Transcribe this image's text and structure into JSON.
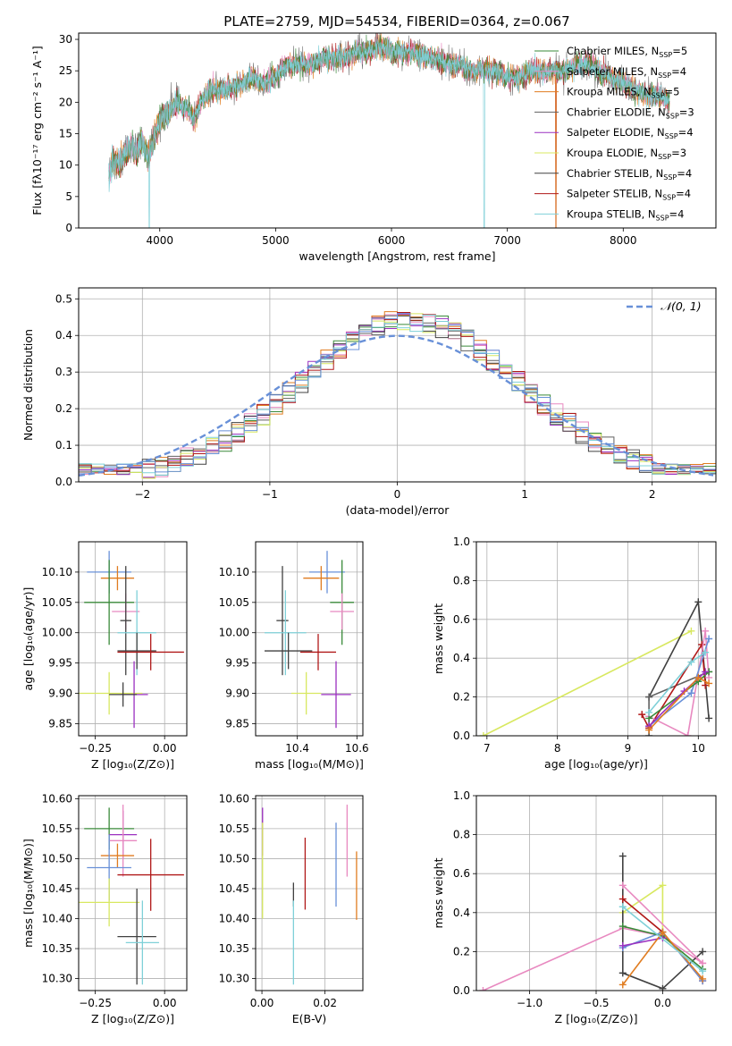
{
  "figure_title": "PLATE=2759, MJD=54534, FIBERID=0364, z=0.067",
  "colors": {
    "chabrier_miles": "#3a8a3a",
    "salpeter_miles": "#e889c0",
    "kroupa_miles": "#e07c20",
    "chabrier_elodie": "#606060",
    "salpeter_elodie": "#9b30c0",
    "kroupa_elodie": "#d8e860",
    "chabrier_stelib": "#404040",
    "salpeter_stelib": "#b01818",
    "kroupa_stelib": "#7fd0d8",
    "blue": "#6890d8",
    "normal_curve": "#6890d8"
  },
  "legend_spectrum": [
    {
      "prefix": "Chabrier MILES, N",
      "sub": "SSP",
      "suffix": "=5",
      "color": "#3a8a3a"
    },
    {
      "prefix": "Salpeter MILES, N",
      "sub": "SSP",
      "suffix": "=4",
      "color": "#e889c0"
    },
    {
      "prefix": "Kroupa MILES, N",
      "sub": "SSP",
      "suffix": "=5",
      "color": "#e07c20"
    },
    {
      "prefix": "Chabrier ELODIE, N",
      "sub": "SSP",
      "suffix": "=3",
      "color": "#606060"
    },
    {
      "prefix": "Salpeter ELODIE, N",
      "sub": "SSP",
      "suffix": "=4",
      "color": "#9b30c0"
    },
    {
      "prefix": "Kroupa ELODIE, N",
      "sub": "SSP",
      "suffix": "=3",
      "color": "#d8e860"
    },
    {
      "prefix": "Chabrier STELIB, N",
      "sub": "SSP",
      "suffix": "=4",
      "color": "#404040"
    },
    {
      "prefix": "Salpeter STELIB, N",
      "sub": "SSP",
      "suffix": "=4",
      "color": "#b01818"
    },
    {
      "prefix": "Kroupa STELIB, N",
      "sub": "SSP",
      "suffix": "=4",
      "color": "#7fd0d8"
    }
  ],
  "chart_data": [
    {
      "type": "line",
      "id": "spectrum",
      "xlabel": "wavelength [Angstrom, rest frame]",
      "ylabel": "Flux [fλ10⁻¹⁷ erg cm⁻² s⁻¹ A⁻¹]",
      "xlim": [
        3300,
        8800
      ],
      "ylim": [
        0,
        31
      ],
      "xticks": [
        4000,
        5000,
        6000,
        7000,
        8000
      ],
      "yticks": [
        0,
        5,
        10,
        15,
        20,
        25,
        30
      ],
      "x": [
        3560,
        3600,
        3650,
        3700,
        3750,
        3800,
        3850,
        3900,
        3950,
        4000,
        4050,
        4100,
        4150,
        4200,
        4250,
        4300,
        4350,
        4400,
        4450,
        4500,
        4600,
        4700,
        4800,
        4900,
        5000,
        5100,
        5200,
        5300,
        5400,
        5500,
        5600,
        5700,
        5800,
        5900,
        6000,
        6100,
        6200,
        6300,
        6400,
        6500,
        6600,
        6700,
        6800,
        6900,
        7000,
        7100,
        7200,
        7300,
        7400,
        7500,
        7600,
        7700,
        7800,
        7900,
        8000,
        8100,
        8200,
        8300,
        8400
      ],
      "y": [
        8,
        11,
        10,
        12,
        13,
        12,
        14,
        11,
        14,
        17,
        18,
        19,
        20,
        19,
        19,
        17,
        20,
        21,
        22,
        22,
        22,
        23,
        24,
        23,
        24,
        26,
        26,
        26,
        27,
        27,
        27,
        28,
        28,
        29,
        28,
        28,
        28,
        27,
        27,
        26,
        26,
        25,
        25,
        25,
        24,
        24,
        25,
        25,
        25,
        25,
        26,
        26,
        25,
        24,
        23,
        22,
        21,
        21,
        20
      ],
      "dips": [
        {
          "x": 3910,
          "y": 0
        },
        {
          "x": 6800,
          "y": 0
        },
        {
          "x": 7420,
          "y": 0
        }
      ]
    },
    {
      "type": "histogram",
      "id": "residuals",
      "xlabel": "(data-model)/error",
      "ylabel": "Normed distribution",
      "xlim": [
        -2.5,
        2.5
      ],
      "ylim": [
        0,
        0.53
      ],
      "xticks": [
        -2,
        -1,
        0,
        1,
        2
      ],
      "yticks": [
        0.0,
        0.1,
        0.2,
        0.3,
        0.4,
        0.5
      ],
      "legend_label": "𝒩(0, 1)",
      "bin_width": 0.1,
      "bins_start": -2.5
    },
    {
      "type": "scatter",
      "id": "age_vs_Z",
      "xlabel": "Z [log₁₀(Z/Z⊙)]",
      "ylabel": "age  [log₁₀(age/yr)]",
      "xlim": [
        -0.31,
        0.08
      ],
      "ylim": [
        9.83,
        10.15
      ],
      "xticks": [
        -0.25,
        0.0
      ],
      "xticklabels": [
        "−0.25",
        "0.00"
      ],
      "yticks": [
        9.85,
        9.9,
        9.95,
        10.0,
        10.05,
        10.1
      ],
      "points": [
        {
          "x": -0.2,
          "y": 10.1,
          "ex": 0.08,
          "ey": 0.035,
          "c": "#6890d8"
        },
        {
          "x": -0.17,
          "y": 10.09,
          "ex": 0.06,
          "ey": 0.02,
          "c": "#e07c20"
        },
        {
          "x": -0.2,
          "y": 10.05,
          "ex": 0.09,
          "ey": 0.07,
          "c": "#3a8a3a"
        },
        {
          "x": -0.14,
          "y": 10.035,
          "ex": 0.05,
          "ey": 0.03,
          "c": "#e889c0"
        },
        {
          "x": -0.14,
          "y": 10.02,
          "ex": 0.02,
          "ey": 0.09,
          "c": "#404040"
        },
        {
          "x": -0.1,
          "y": 10.0,
          "ex": 0.07,
          "ey": 0.07,
          "c": "#7fd0d8"
        },
        {
          "x": -0.1,
          "y": 9.97,
          "ex": 0.07,
          "ey": 0.03,
          "c": "#404040"
        },
        {
          "x": -0.05,
          "y": 9.968,
          "ex": 0.12,
          "ey": 0.03,
          "c": "#b01818"
        },
        {
          "x": -0.2,
          "y": 9.9,
          "ex": 0.12,
          "ey": 0.035,
          "c": "#d8e860"
        },
        {
          "x": -0.11,
          "y": 9.898,
          "ex": 0.05,
          "ey": 0.055,
          "c": "#9b30c0"
        },
        {
          "x": -0.15,
          "y": 9.898,
          "ex": 0.05,
          "ey": 0.02,
          "c": "#404040"
        }
      ]
    },
    {
      "type": "scatter",
      "id": "age_vs_mass",
      "xlabel": "mass [log₁₀(M/M⊙)]",
      "ylabel": "",
      "xlim": [
        10.26,
        10.62
      ],
      "ylim": [
        9.83,
        10.15
      ],
      "xticks": [
        10.4,
        10.6
      ],
      "xticklabels": [
        "10.4",
        "10.6"
      ],
      "yticks": [
        9.85,
        9.9,
        9.95,
        10.0,
        10.05,
        10.1
      ],
      "points": [
        {
          "x": 10.5,
          "y": 10.1,
          "ex": 0.06,
          "ey": 0.035,
          "c": "#6890d8"
        },
        {
          "x": 10.48,
          "y": 10.09,
          "ex": 0.06,
          "ey": 0.02,
          "c": "#e07c20"
        },
        {
          "x": 10.55,
          "y": 10.05,
          "ex": 0.04,
          "ey": 0.07,
          "c": "#3a8a3a"
        },
        {
          "x": 10.55,
          "y": 10.035,
          "ex": 0.04,
          "ey": 0.03,
          "c": "#e889c0"
        },
        {
          "x": 10.35,
          "y": 10.02,
          "ex": 0.02,
          "ey": 0.09,
          "c": "#404040"
        },
        {
          "x": 10.36,
          "y": 10.0,
          "ex": 0.07,
          "ey": 0.07,
          "c": "#7fd0d8"
        },
        {
          "x": 10.37,
          "y": 9.97,
          "ex": 0.08,
          "ey": 0.03,
          "c": "#404040"
        },
        {
          "x": 10.47,
          "y": 9.968,
          "ex": 0.06,
          "ey": 0.03,
          "c": "#b01818"
        },
        {
          "x": 10.43,
          "y": 9.9,
          "ex": 0.05,
          "ey": 0.035,
          "c": "#d8e860"
        },
        {
          "x": 10.53,
          "y": 9.898,
          "ex": 0.05,
          "ey": 0.055,
          "c": "#9b30c0"
        }
      ]
    },
    {
      "type": "line",
      "id": "mass_weight_vs_age",
      "xlabel": "age  [log₁₀(age/yr)]",
      "ylabel": "mass weight",
      "xlim": [
        6.85,
        10.25
      ],
      "ylim": [
        0,
        1.0
      ],
      "xticks": [
        7,
        8,
        9,
        10
      ],
      "yticks": [
        0.0,
        0.2,
        0.4,
        0.6,
        0.8,
        1.0
      ],
      "series": [
        {
          "c": "#d8e860",
          "x": [
            6.95,
            9.9
          ],
          "y": [
            0.0,
            0.54
          ]
        },
        {
          "c": "#404040",
          "x": [
            9.3,
            10.0,
            10.15
          ],
          "y": [
            0.2,
            0.69,
            0.09
          ]
        },
        {
          "c": "#606060",
          "x": [
            9.3,
            9.3,
            10.15
          ],
          "y": [
            0.0,
            0.2,
            0.33
          ]
        },
        {
          "c": "#b01818",
          "x": [
            9.2,
            9.3,
            10.05,
            10.1
          ],
          "y": [
            0.11,
            0.04,
            0.47,
            0.26
          ]
        },
        {
          "c": "#e889c0",
          "x": [
            9.3,
            9.85,
            10.1,
            10.15
          ],
          "y": [
            0.1,
            0.0,
            0.54,
            0.3
          ]
        },
        {
          "c": "#6890d8",
          "x": [
            9.3,
            9.9,
            10.15
          ],
          "y": [
            0.05,
            0.22,
            0.5
          ]
        },
        {
          "c": "#3a8a3a",
          "x": [
            9.3,
            10.0,
            10.15
          ],
          "y": [
            0.09,
            0.28,
            0.33
          ]
        },
        {
          "c": "#9b30c0",
          "x": [
            9.3,
            9.8,
            10.1
          ],
          "y": [
            0.05,
            0.23,
            0.33
          ]
        },
        {
          "c": "#e07c20",
          "x": [
            9.3,
            10.0,
            10.15
          ],
          "y": [
            0.03,
            0.3,
            0.27
          ]
        },
        {
          "c": "#7fd0d8",
          "x": [
            9.3,
            9.9,
            10.1
          ],
          "y": [
            0.12,
            0.38,
            0.43
          ]
        }
      ]
    },
    {
      "type": "scatter",
      "id": "mass_vs_Z",
      "xlabel": "Z [log₁₀(Z/Z⊙)]",
      "ylabel": "mass [log₁₀(M/M⊙)]",
      "xlim": [
        -0.31,
        0.08
      ],
      "ylim": [
        10.28,
        10.605
      ],
      "xticks": [
        -0.25,
        0.0
      ],
      "xticklabels": [
        "−0.25",
        "0.00"
      ],
      "yticks": [
        10.3,
        10.35,
        10.4,
        10.45,
        10.5,
        10.55,
        10.6
      ],
      "points": [
        {
          "x": -0.2,
          "y": 10.55,
          "ex": 0.09,
          "ey": 0.035,
          "c": "#3a8a3a"
        },
        {
          "x": -0.15,
          "y": 10.54,
          "ex": 0.05,
          "ey": 0.04,
          "c": "#9b30c0"
        },
        {
          "x": -0.15,
          "y": 10.53,
          "ex": 0.05,
          "ey": 0.06,
          "c": "#e889c0"
        },
        {
          "x": -0.17,
          "y": 10.505,
          "ex": 0.06,
          "ey": 0.02,
          "c": "#e07c20"
        },
        {
          "x": -0.2,
          "y": 10.485,
          "ex": 0.08,
          "ey": 0.055,
          "c": "#6890d8"
        },
        {
          "x": -0.05,
          "y": 10.473,
          "ex": 0.12,
          "ey": 0.06,
          "c": "#b01818"
        },
        {
          "x": -0.2,
          "y": 10.427,
          "ex": 0.11,
          "ey": 0.04,
          "c": "#d8e860"
        },
        {
          "x": -0.1,
          "y": 10.37,
          "ex": 0.07,
          "ey": 0.08,
          "c": "#404040"
        },
        {
          "x": -0.08,
          "y": 10.36,
          "ex": 0.06,
          "ey": 0.07,
          "c": "#7fd0d8"
        }
      ]
    },
    {
      "type": "scatter",
      "id": "mass_vs_ebv",
      "xlabel": "E(B-V)",
      "ylabel": "",
      "xlim": [
        -0.002,
        0.032
      ],
      "ylim": [
        10.28,
        10.605
      ],
      "xticks": [
        0.0,
        0.02
      ],
      "xticklabels": [
        "0.00",
        "0.02"
      ],
      "yticks": [
        10.3,
        10.35,
        10.4,
        10.45,
        10.5,
        10.55,
        10.6
      ],
      "points": [
        {
          "x": 0.0002,
          "y": 10.545,
          "ex": 0,
          "ey": 0.04,
          "c": "#9b30c0"
        },
        {
          "x": 0.0002,
          "y": 10.48,
          "ex": 0,
          "ey": 0.08,
          "c": "#d8e860"
        },
        {
          "x": 0.01,
          "y": 10.44,
          "ex": 0,
          "ey": 0.02,
          "c": "#404040"
        },
        {
          "x": 0.01,
          "y": 10.36,
          "ex": 0,
          "ey": 0.07,
          "c": "#7fd0d8"
        },
        {
          "x": 0.0137,
          "y": 10.475,
          "ex": 0,
          "ey": 0.06,
          "c": "#b01818"
        },
        {
          "x": 0.0235,
          "y": 10.49,
          "ex": 0,
          "ey": 0.07,
          "c": "#6890d8"
        },
        {
          "x": 0.027,
          "y": 10.53,
          "ex": 0,
          "ey": 0.06,
          "c": "#e889c0"
        },
        {
          "x": 0.03,
          "y": 10.455,
          "ex": 0,
          "ey": 0.057,
          "c": "#e07c20"
        }
      ]
    },
    {
      "type": "line",
      "id": "mass_weight_vs_Z",
      "xlabel": "Z [log₁₀(Z/Z⊙)]",
      "ylabel": "mass weight",
      "xlim": [
        -1.4,
        0.4
      ],
      "ylim": [
        0,
        1.0
      ],
      "xticks": [
        -1.0,
        -0.5,
        0.0
      ],
      "xticklabels": [
        "−1.0",
        "−0.5",
        "0.0"
      ],
      "yticks": [
        0.0,
        0.2,
        0.4,
        0.6,
        0.8,
        1.0
      ],
      "series": [
        {
          "c": "#e889c0",
          "x": [
            -1.35,
            -0.3,
            0.0,
            0.3
          ],
          "y": [
            0.0,
            0.32,
            0.28,
            0.14
          ]
        },
        {
          "c": "#d8e860",
          "x": [
            -0.3,
            0.0,
            0.0
          ],
          "y": [
            0.4,
            0.54,
            0.28
          ]
        },
        {
          "c": "#404040",
          "x": [
            -0.3,
            -0.3,
            0.0,
            0.3
          ],
          "y": [
            0.69,
            0.09,
            0.01,
            0.2
          ]
        },
        {
          "c": "#b01818",
          "x": [
            -0.3,
            0.0,
            0.3
          ],
          "y": [
            0.47,
            0.3,
            0.05
          ]
        },
        {
          "c": "#e889c0",
          "x": [
            -0.3,
            0.3
          ],
          "y": [
            0.54,
            0.14
          ]
        },
        {
          "c": "#6890d8",
          "x": [
            -0.3,
            0.0,
            0.3
          ],
          "y": [
            0.22,
            0.3,
            0.05
          ]
        },
        {
          "c": "#3a8a3a",
          "x": [
            -0.3,
            0.0,
            0.3
          ],
          "y": [
            0.33,
            0.28,
            0.11
          ]
        },
        {
          "c": "#9b30c0",
          "x": [
            -0.3,
            0.0
          ],
          "y": [
            0.23,
            0.27
          ]
        },
        {
          "c": "#e07c20",
          "x": [
            -0.3,
            0.0,
            0.3
          ],
          "y": [
            0.03,
            0.3,
            0.06
          ]
        },
        {
          "c": "#7fd0d8",
          "x": [
            -0.3,
            0.3
          ],
          "y": [
            0.43,
            0.1
          ]
        }
      ]
    }
  ]
}
